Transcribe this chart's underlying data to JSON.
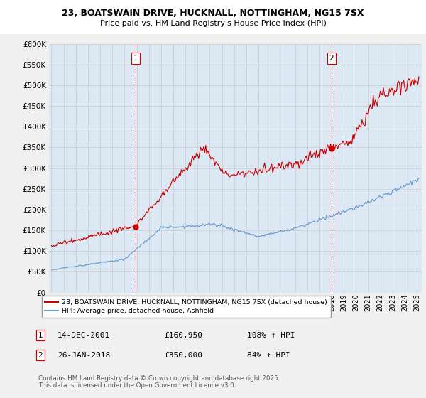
{
  "title": "23, BOATSWAIN DRIVE, HUCKNALL, NOTTINGHAM, NG15 7SX",
  "subtitle": "Price paid vs. HM Land Registry's House Price Index (HPI)",
  "red_label": "23, BOATSWAIN DRIVE, HUCKNALL, NOTTINGHAM, NG15 7SX (detached house)",
  "blue_label": "HPI: Average price, detached house, Ashfield",
  "annotation1_date": "14-DEC-2001",
  "annotation1_price": "£160,950",
  "annotation1_hpi": "108% ↑ HPI",
  "annotation2_date": "26-JAN-2018",
  "annotation2_price": "£350,000",
  "annotation2_hpi": "84% ↑ HPI",
  "footer": "Contains HM Land Registry data © Crown copyright and database right 2025.\nThis data is licensed under the Open Government Licence v3.0.",
  "ylim": [
    0,
    600000
  ],
  "red_color": "#cc0000",
  "blue_color": "#6699cc",
  "vline_color": "#cc0000",
  "grid_color": "#cccccc",
  "bg_color": "#dce9f5",
  "fig_bg": "#f0f0f0"
}
